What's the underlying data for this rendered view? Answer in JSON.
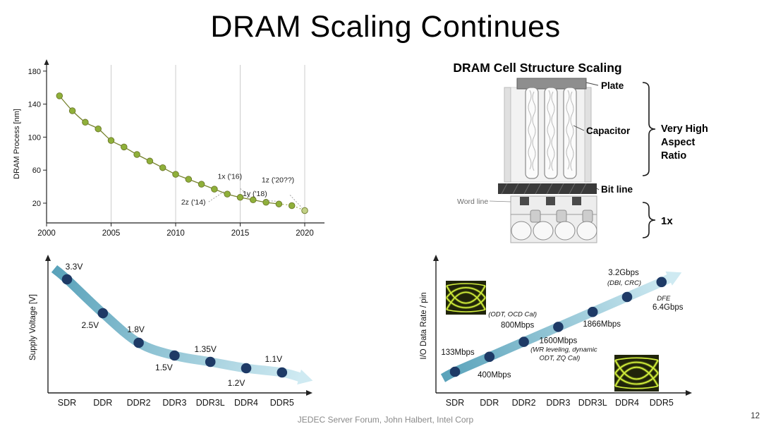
{
  "slide": {
    "title": "DRAM Scaling Continues",
    "footer": "JEDEC Server Forum,  John Halbert, Intel Corp",
    "page_number": "12"
  },
  "cell_structure": {
    "title": "DRAM Cell Structure Scaling",
    "labels": {
      "plate": "Plate",
      "capacitor": "Capacitor",
      "bit_line": "Bit line",
      "word_line": "Word line",
      "aspect_ratio_lines": [
        "Very High",
        "Aspect",
        "Ratio"
      ],
      "scale": "1x"
    }
  },
  "chart_data": [
    {
      "id": "dram-process",
      "type": "scatter",
      "ylabel": "DRAM Process [nm]",
      "xlim": [
        2000,
        2020
      ],
      "ylim": [
        0,
        190
      ],
      "xticks": [
        2000,
        2005,
        2010,
        2015,
        2020
      ],
      "yticks": [
        20,
        60,
        100,
        140,
        180
      ],
      "grid_x": [
        2005,
        2010,
        2015,
        2020
      ],
      "x": [
        2001,
        2002,
        2003,
        2004,
        2005,
        2006,
        2007,
        2008,
        2009,
        2010,
        2011,
        2012,
        2013,
        2014,
        2015,
        2016,
        2017,
        2018,
        2019,
        2020
      ],
      "y": [
        150,
        132,
        118,
        110,
        96,
        88,
        79,
        71,
        63,
        55,
        49,
        43,
        37,
        31,
        27,
        24,
        21,
        19,
        17,
        11
      ],
      "point_color": "#8fb03a",
      "line_color": "#77832f",
      "annotations": [
        {
          "text": "2z ('14)",
          "year": 2014
        },
        {
          "text": "1x ('16)",
          "year": 2016
        },
        {
          "text": "1y ('18)",
          "year": 2018
        },
        {
          "text": "1z ('20??)",
          "year": 2020
        }
      ]
    },
    {
      "id": "supply-voltage",
      "type": "line",
      "ylabel": "Supply Voltage [V]",
      "categories": [
        "SDR",
        "DDR",
        "DDR2",
        "DDR3",
        "DDR3L",
        "DDR4",
        "DDR5"
      ],
      "values": [
        3.3,
        2.5,
        1.8,
        1.5,
        1.35,
        1.2,
        1.1
      ],
      "point_labels": [
        "3.3V",
        "2.5V",
        "1.8V",
        "1.5V",
        "1.35V",
        "1.2V",
        "1.1V"
      ],
      "trend": "decreasing",
      "arrow_color_dark": "#59a2ba",
      "arrow_color_light": "#cfeaf2",
      "dot_color": "#1e3a66"
    },
    {
      "id": "io-data-rate",
      "type": "line",
      "ylabel": "I/O Data Rate / pin",
      "categories": [
        "SDR",
        "DDR",
        "DDR2",
        "DDR3",
        "DDR3L",
        "DDR4",
        "DDR5"
      ],
      "values_mbps": [
        133,
        400,
        800,
        1600,
        1866,
        3200,
        6400
      ],
      "point_labels": [
        "133Mbps",
        "400Mbps",
        "800Mbps",
        "1600Mbps",
        "1866Mbps",
        "3.2Gbps",
        "6.4Gbps"
      ],
      "point_notes": [
        null,
        null,
        [
          "(ODT, OCD Cal)"
        ],
        [
          "(WR leveling, dynamic",
          "ODT, ZQ Cal)"
        ],
        null,
        [
          "(DBI, CRC)"
        ],
        [
          "DFE"
        ]
      ],
      "trend": "increasing",
      "arrow_color_dark": "#59a2ba",
      "arrow_color_light": "#cfeaf2",
      "dot_color": "#1e3a66"
    }
  ]
}
